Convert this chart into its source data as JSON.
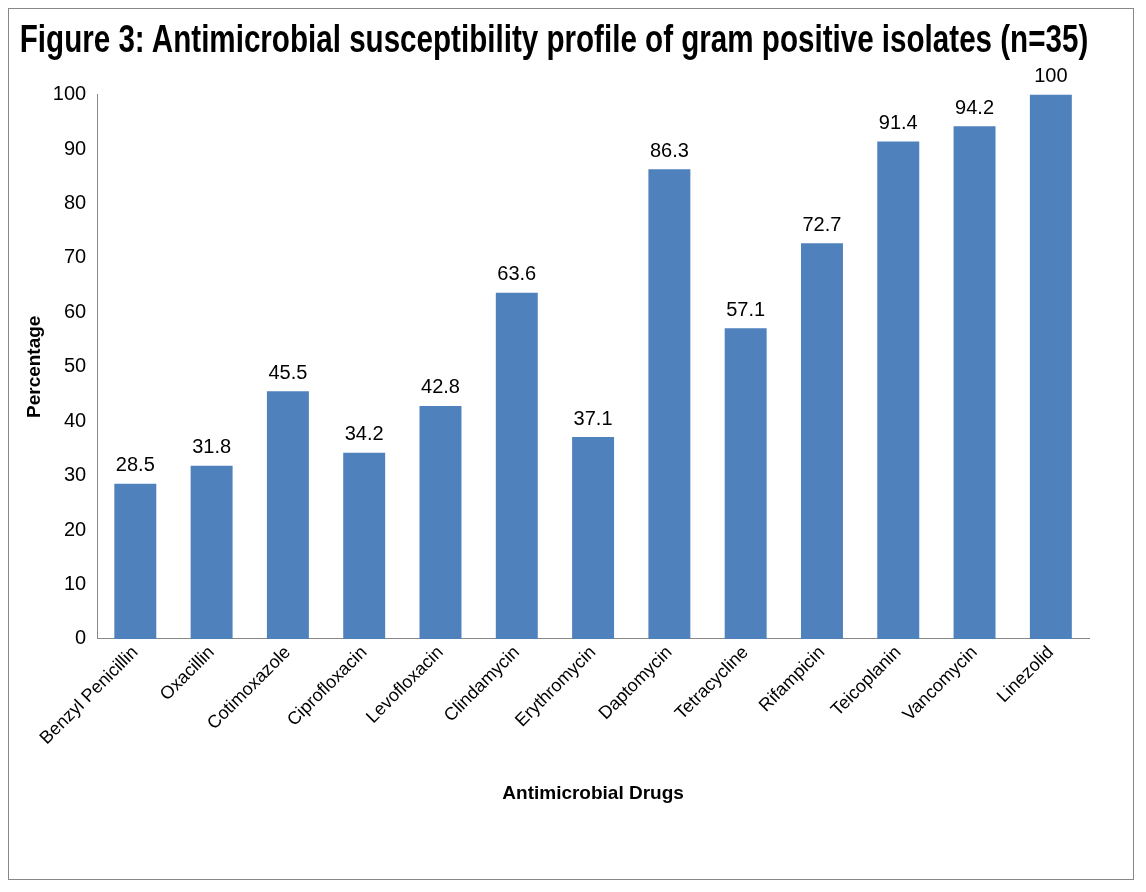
{
  "chart_data": {
    "type": "bar",
    "title": "Figure 3: Antimicrobial susceptibility profile of gram positive isolates (n=35)",
    "xlabel": "Antimicrobial Drugs",
    "ylabel": "Percentage",
    "categories": [
      "Benzyl Penicillin",
      "Oxacillin",
      "Cotimoxazole",
      "Ciprofloxacin",
      "Levofloxacin",
      "Clindamycin",
      "Erythromycin",
      "Daptomycin",
      "Tetracycline",
      "Rifampicin",
      "Teicoplanin",
      "Vancomycin",
      "Linezolid"
    ],
    "values": [
      28.5,
      31.8,
      45.5,
      34.2,
      42.8,
      63.6,
      37.1,
      86.3,
      57.1,
      72.7,
      91.4,
      94.2,
      100
    ],
    "color": "#4f81bd",
    "ylim": [
      0,
      100
    ],
    "yticks": [
      0,
      10,
      20,
      30,
      40,
      50,
      60,
      70,
      80,
      90,
      100
    ],
    "grid": false,
    "legend": false,
    "data_labels": true
  }
}
